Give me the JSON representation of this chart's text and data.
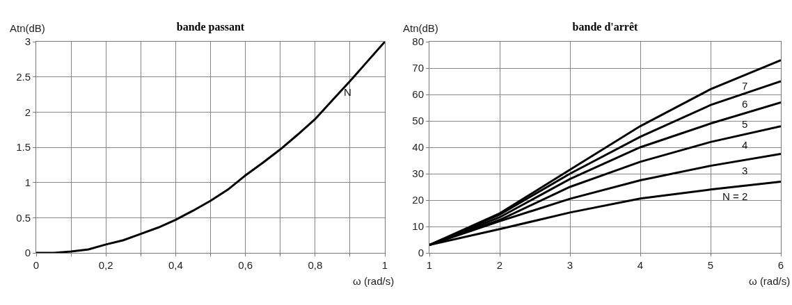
{
  "chart_data": [
    {
      "type": "line",
      "title": "bande passant",
      "xlabel": "ω (rad/s)",
      "ylabel": "Atn(dB)",
      "grid": true,
      "legend": false,
      "marker": "none",
      "line_style": "solid",
      "xlim": [
        0,
        1
      ],
      "xticks": [
        0,
        {
          "value": 0.1,
          "label": null
        },
        {
          "value": 0.2,
          "label": "0,2"
        },
        {
          "value": 0.3,
          "label": null
        },
        {
          "value": 0.4,
          "label": "0,4"
        },
        {
          "value": 0.5,
          "label": null
        },
        {
          "value": 0.6,
          "label": "0,6"
        },
        {
          "value": 0.7,
          "label": null
        },
        {
          "value": 0.8,
          "label": "0,8"
        },
        {
          "value": 0.9,
          "label": null
        },
        1
      ],
      "ylim": [
        0,
        3
      ],
      "yticks": [
        0,
        0.5,
        1,
        1.5,
        2,
        2.5,
        3
      ],
      "x": [
        0,
        0.05,
        0.1,
        0.15,
        0.2,
        0.25,
        0.3,
        0.35,
        0.4,
        0.45,
        0.5,
        0.55,
        0.6,
        0.65,
        0.7,
        0.75,
        0.8,
        0.85,
        0.9,
        0.95,
        1
      ],
      "series": [
        {
          "name": "N",
          "color": "#000000",
          "values": [
            0,
            0,
            0.02,
            0.05,
            0.12,
            0.18,
            0.27,
            0.36,
            0.47,
            0.6,
            0.74,
            0.9,
            1.1,
            1.28,
            1.47,
            1.68,
            1.9,
            2.17,
            2.44,
            2.72,
            3
          ]
        }
      ]
    },
    {
      "type": "line",
      "title": "bande d'arrêt",
      "xlabel": "ω (rad/s)",
      "ylabel": "Atn(dB)",
      "grid": true,
      "legend": false,
      "marker": "none",
      "line_style": "solid",
      "xlim": [
        1,
        6
      ],
      "xticks": [
        1,
        2,
        3,
        4,
        5,
        6
      ],
      "ylim": [
        0,
        80
      ],
      "yticks": [
        0,
        10,
        20,
        30,
        40,
        50,
        60,
        70,
        80
      ],
      "x": [
        1,
        2,
        3,
        4,
        5,
        6
      ],
      "series": [
        {
          "name": "N = 2",
          "color": "#000000",
          "values": [
            3,
            9,
            15.3,
            20.6,
            24,
            27
          ]
        },
        {
          "name": "3",
          "color": "#000000",
          "values": [
            3,
            12,
            20.5,
            27.5,
            33,
            37.5
          ]
        },
        {
          "name": "4",
          "color": "#000000",
          "values": [
            3,
            12.5,
            25,
            34.5,
            42,
            48
          ]
        },
        {
          "name": "5",
          "color": "#000000",
          "values": [
            3,
            13.5,
            28,
            40,
            49,
            57
          ]
        },
        {
          "name": "6",
          "color": "#000000",
          "values": [
            3,
            14.5,
            30,
            44,
            56,
            65
          ]
        },
        {
          "name": "7",
          "color": "#000000",
          "values": [
            3,
            15,
            31.5,
            48,
            62,
            73
          ]
        }
      ]
    }
  ]
}
